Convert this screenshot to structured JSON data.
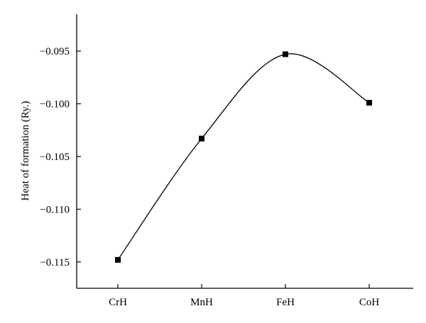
{
  "chart_data": {
    "type": "line",
    "title": "",
    "xlabel": "",
    "ylabel": "Heat of formation (Ry.)",
    "categories": [
      "CrH",
      "MnH",
      "FeH",
      "CoH"
    ],
    "values": [
      -0.1148,
      -0.1033,
      -0.0953,
      -0.0999
    ],
    "ylim": [
      -0.1175,
      -0.0915
    ],
    "yticks": [
      -0.115,
      -0.11,
      -0.105,
      -0.1,
      -0.095
    ],
    "ytick_labels": [
      "−0.115",
      "−0.110",
      "−0.105",
      "−0.100",
      "−0.095"
    ],
    "grid": false,
    "legend": "none",
    "marker": "square",
    "curve": "smooth",
    "color": "#000000"
  }
}
